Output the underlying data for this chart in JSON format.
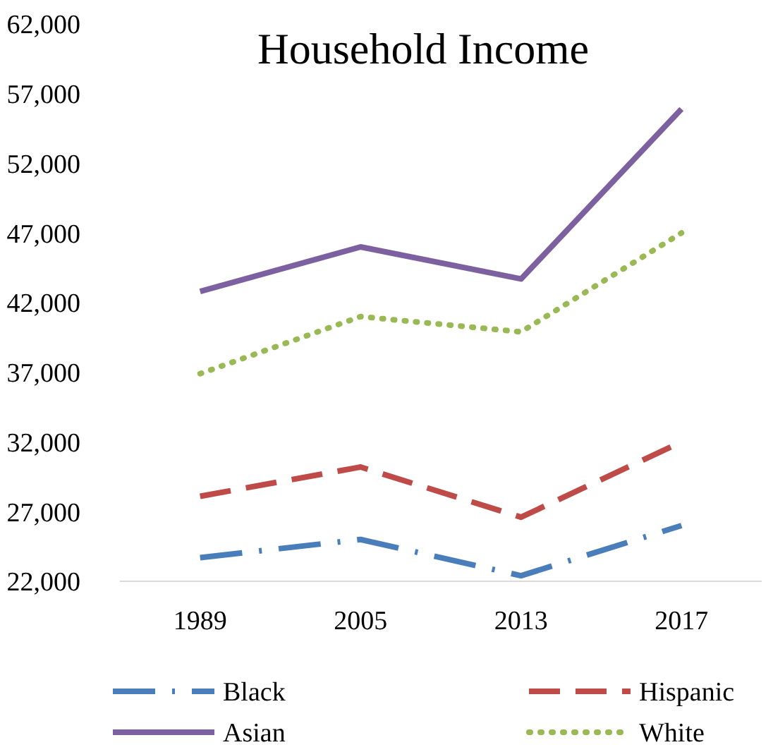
{
  "chart_data": {
    "type": "line",
    "title": "Household Income",
    "categories": [
      "1989",
      "2005",
      "2013",
      "2017"
    ],
    "ylim": [
      22000,
      62000
    ],
    "yticks": [
      {
        "value": 22000,
        "label": "22,000"
      },
      {
        "value": 27000,
        "label": "27,000"
      },
      {
        "value": 32000,
        "label": "32,000"
      },
      {
        "value": 37000,
        "label": "37,000"
      },
      {
        "value": 42000,
        "label": "42,000"
      },
      {
        "value": 47000,
        "label": "47,000"
      },
      {
        "value": 52000,
        "label": "52,000"
      },
      {
        "value": 57000,
        "label": "57,000"
      },
      {
        "value": 62000,
        "label": "62,000"
      }
    ],
    "grid": false,
    "legend": "bottom",
    "marker": "none",
    "series": [
      {
        "name": "Black",
        "color": "#4a7ebb",
        "line_style": "dashdot",
        "values": [
          23700,
          25000,
          22400,
          26000
        ]
      },
      {
        "name": "Hispanic",
        "color": "#be4b48",
        "line_style": "dashed",
        "values": [
          28100,
          30200,
          26600,
          32000
        ]
      },
      {
        "name": "Asian",
        "color": "#7d60a0",
        "line_style": "solid",
        "values": [
          42800,
          46000,
          43700,
          55900
        ]
      },
      {
        "name": "White",
        "color": "#98b954",
        "line_style": "dotted",
        "values": [
          36900,
          41000,
          39900,
          47000
        ]
      }
    ]
  }
}
